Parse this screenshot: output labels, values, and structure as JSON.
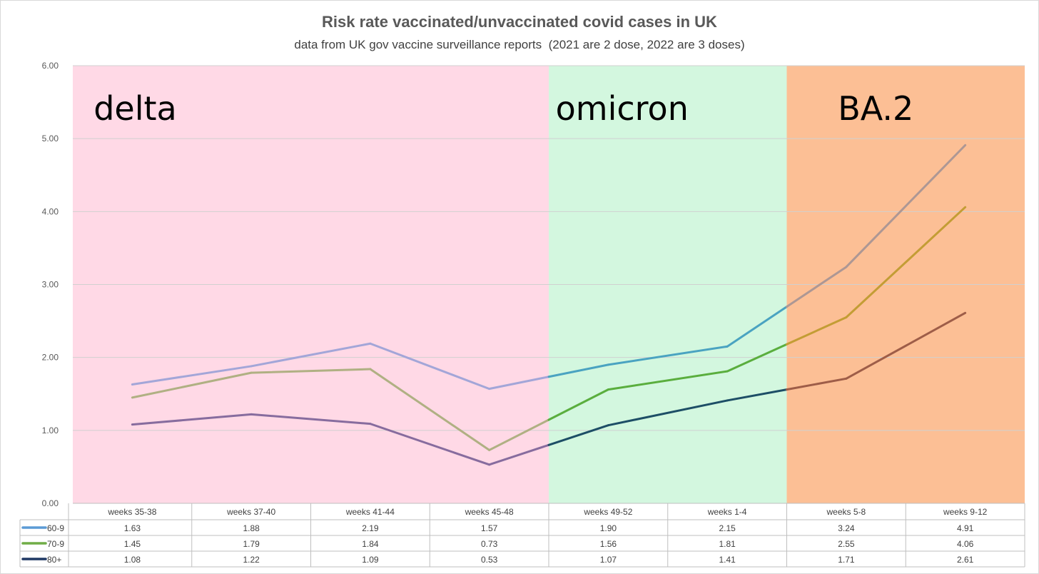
{
  "chart_data": {
    "type": "line",
    "title": "Risk rate vaccinated/unvaccinated covid cases in UK",
    "subtitle": "data from UK gov vaccine surveillance reports  (2021 are 2 dose, 2022 are 3 doses)",
    "categories": [
      "weeks 35-38",
      "weeks 37-40",
      "weeks 41-44",
      "weeks 45-48",
      "weeks 49-52",
      "weeks 1-4",
      "weeks 5-8",
      "weeks 9-12"
    ],
    "series": [
      {
        "name": "60-9",
        "values": [
          1.63,
          1.88,
          2.19,
          1.57,
          1.9,
          2.15,
          3.24,
          4.91
        ],
        "legend_color": "#5b9bd5"
      },
      {
        "name": "70-9",
        "values": [
          1.45,
          1.79,
          1.84,
          0.73,
          1.56,
          1.81,
          2.55,
          4.06
        ],
        "legend_color": "#70ad47"
      },
      {
        "name": "80+",
        "values": [
          1.08,
          1.22,
          1.09,
          0.53,
          1.07,
          1.41,
          1.71,
          2.61
        ],
        "legend_color": "#1f3864"
      }
    ],
    "value_labels": [
      [
        "1.63",
        "1.88",
        "2.19",
        "1.57",
        "1.90",
        "2.15",
        "3.24",
        "4.91"
      ],
      [
        "1.45",
        "1.79",
        "1.84",
        "0.73",
        "1.56",
        "1.81",
        "2.55",
        "4.06"
      ],
      [
        "1.08",
        "1.22",
        "1.09",
        "0.53",
        "1.07",
        "1.41",
        "1.71",
        "2.61"
      ]
    ],
    "ylim": [
      0,
      6
    ],
    "yticks": [
      0,
      1,
      2,
      3,
      4,
      5,
      6
    ],
    "ytick_labels": [
      "0.00",
      "1.00",
      "2.00",
      "3.00",
      "4.00",
      "5.00",
      "6.00"
    ],
    "grid": true,
    "xlabel": "",
    "ylabel": "",
    "data_table": true,
    "regions": [
      {
        "label": "delta",
        "start": -0.5,
        "end": 3.5,
        "color": "#ffd9e6"
      },
      {
        "label": "omicron",
        "start": 3.5,
        "end": 5.5,
        "color": "#d3f7df"
      },
      {
        "label": "BA.2",
        "start": 5.5,
        "end": 7.5,
        "color": "#fcbf95"
      }
    ],
    "series_colors_by_region": [
      [
        "#a3a6d8",
        "#4aa3c1",
        "#ad9794"
      ],
      [
        "#b0b083",
        "#5aae3e",
        "#c39d35"
      ],
      [
        "#876c9e",
        "#1d4e66",
        "#9e5d48"
      ]
    ]
  }
}
